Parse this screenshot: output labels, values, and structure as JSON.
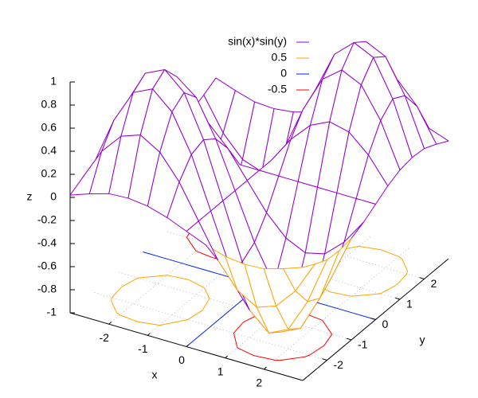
{
  "chart_data": {
    "type": "surface",
    "xlabel": "x",
    "ylabel": "y",
    "zlabel": "z",
    "x": [
      -3,
      -2.5,
      -2,
      -1.5,
      -1,
      -0.5,
      0,
      0.5,
      1,
      1.5,
      2,
      2.5,
      3
    ],
    "y": [
      -3,
      -2.5,
      -2,
      -1.5,
      -1,
      -0.5,
      0,
      0.5,
      1,
      1.5,
      2,
      2.5,
      3
    ],
    "z": [
      [
        0.02,
        0.08,
        0.13,
        0.14,
        0.12,
        0.07,
        0,
        -0.07,
        -0.12,
        -0.14,
        -0.13,
        -0.08,
        -0.02
      ],
      [
        0.08,
        0.36,
        0.54,
        0.6,
        0.5,
        0.29,
        0,
        -0.29,
        -0.5,
        -0.6,
        -0.54,
        -0.36,
        -0.08
      ],
      [
        0.13,
        0.54,
        0.83,
        0.91,
        0.76,
        0.44,
        0,
        -0.44,
        -0.76,
        -0.91,
        -0.83,
        -0.54,
        -0.13
      ],
      [
        0.14,
        0.6,
        0.91,
        0.99,
        0.84,
        0.48,
        0,
        -0.48,
        -0.84,
        -0.99,
        -0.91,
        -0.6,
        -0.14
      ],
      [
        0.12,
        0.5,
        0.76,
        0.84,
        0.71,
        0.4,
        0,
        -0.4,
        -0.71,
        -0.84,
        -0.76,
        -0.5,
        -0.12
      ],
      [
        0.07,
        0.29,
        0.44,
        0.48,
        0.4,
        0.23,
        0,
        -0.23,
        -0.4,
        -0.48,
        -0.44,
        -0.29,
        -0.07
      ],
      [
        0,
        0,
        0,
        0,
        0,
        0,
        0,
        0,
        0,
        0,
        0,
        0,
        0
      ],
      [
        -0.07,
        -0.29,
        -0.44,
        -0.48,
        -0.4,
        -0.23,
        0,
        0.23,
        0.4,
        0.48,
        0.44,
        0.29,
        0.07
      ],
      [
        -0.12,
        -0.5,
        -0.76,
        -0.84,
        -0.71,
        -0.4,
        0,
        0.4,
        0.71,
        0.84,
        0.76,
        0.5,
        0.12
      ],
      [
        -0.14,
        -0.6,
        -0.91,
        -0.99,
        -0.84,
        -0.48,
        0,
        0.48,
        0.84,
        0.99,
        0.91,
        0.6,
        0.14
      ],
      [
        -0.13,
        -0.54,
        -0.83,
        -0.91,
        -0.76,
        -0.44,
        0,
        0.44,
        0.76,
        0.91,
        0.83,
        0.54,
        0.13
      ],
      [
        -0.08,
        -0.36,
        -0.54,
        -0.6,
        -0.5,
        -0.29,
        0,
        0.29,
        0.5,
        0.6,
        0.54,
        0.36,
        0.08
      ],
      [
        -0.02,
        -0.08,
        -0.13,
        -0.14,
        -0.12,
        -0.07,
        0,
        0.07,
        0.12,
        0.14,
        0.13,
        0.08,
        0.02
      ]
    ],
    "xlim": [
      -3,
      3
    ],
    "ylim": [
      -3,
      3
    ],
    "zlim": [
      -1,
      1
    ],
    "xticks": [
      -2,
      -1,
      0,
      1,
      2
    ],
    "yticks": [
      -2,
      -1,
      0,
      1,
      2
    ],
    "zticks": [
      -1,
      -0.8,
      -0.6,
      -0.4,
      -0.2,
      0,
      0.2,
      0.4,
      0.6,
      0.8,
      1
    ],
    "grid": true,
    "legend": "top-right",
    "series": [
      {
        "name": "sin(x)*sin(y)",
        "color": "#9400d3",
        "back_color": "#ffa500"
      }
    ],
    "contours": [
      {
        "level": 0.5,
        "color": "#ffa500"
      },
      {
        "level": 0,
        "color": "#0020ff"
      },
      {
        "level": -0.5,
        "color": "#ff0000"
      }
    ]
  }
}
